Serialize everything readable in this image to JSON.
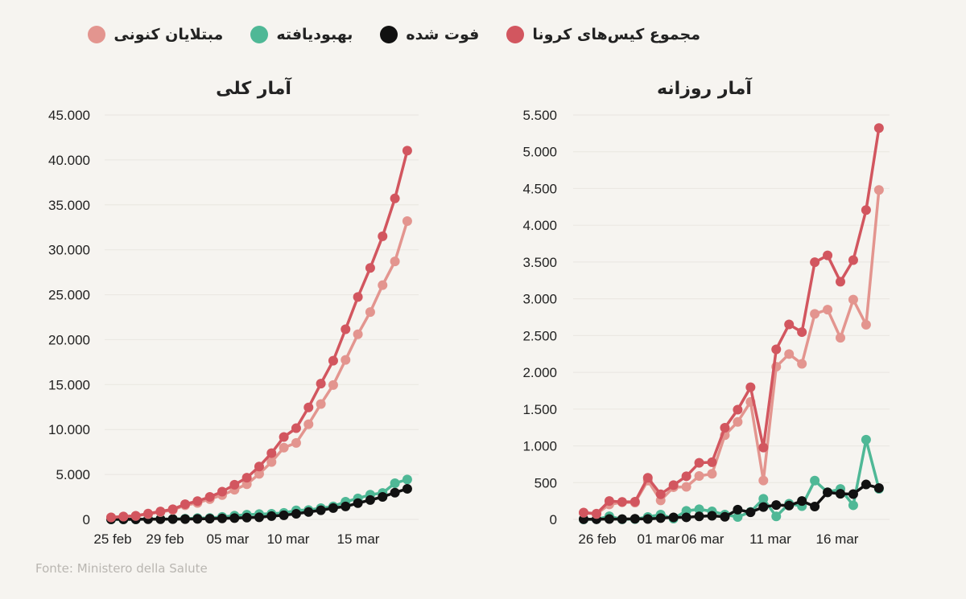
{
  "legend": [
    {
      "label": "مجموع کیس‌های کرونا",
      "color": "#d2565f"
    },
    {
      "label": "فوت شده",
      "color": "#111111"
    },
    {
      "label": "بهبودیافته",
      "color": "#4fb896"
    },
    {
      "label": "مبتلایان کنونی",
      "color": "#e3958f"
    }
  ],
  "source": "Fonte: Ministero della Salute",
  "chart_data": [
    {
      "type": "line",
      "title": "آمار کلی",
      "xlabel": "",
      "ylabel": "",
      "ylim": [
        0,
        45000
      ],
      "yticks": [
        "0",
        "5.000",
        "10.000",
        "15.000",
        "20.000",
        "25.000",
        "30.000",
        "35.000",
        "40.000",
        "45.000"
      ],
      "xtick_labels": [
        "25 feb",
        "29 feb",
        "05 mar",
        "10 mar",
        "15 mar"
      ],
      "x": [
        "24 feb",
        "25 feb",
        "26 feb",
        "27 feb",
        "28 feb",
        "29 feb",
        "01 mar",
        "02 mar",
        "03 mar",
        "04 mar",
        "05 mar",
        "06 mar",
        "07 mar",
        "08 mar",
        "09 mar",
        "10 mar",
        "11 mar",
        "12 mar",
        "13 mar",
        "14 mar",
        "15 mar",
        "16 mar",
        "17 mar",
        "18 mar",
        "19 mar"
      ],
      "series": [
        {
          "name": "مجموع کیس‌های کرونا",
          "color": "#d2565f",
          "values": [
            229,
            322,
            400,
            650,
            888,
            1128,
            1694,
            2036,
            2502,
            3089,
            3858,
            4636,
            5883,
            7375,
            9172,
            10149,
            12462,
            15113,
            17660,
            21157,
            24747,
            27980,
            31506,
            35713,
            41035
          ]
        },
        {
          "name": "مبتلایان کنونی",
          "color": "#e3958f",
          "values": [
            221,
            311,
            385,
            588,
            821,
            1049,
            1577,
            1835,
            2263,
            2706,
            3296,
            3916,
            5061,
            6387,
            7985,
            8514,
            10590,
            12839,
            14955,
            17750,
            20603,
            23073,
            26062,
            28710,
            33190
          ]
        },
        {
          "name": "بهبودیافته",
          "color": "#4fb896",
          "values": [
            1,
            1,
            3,
            45,
            46,
            50,
            83,
            149,
            160,
            276,
            414,
            523,
            589,
            622,
            724,
            1004,
            1045,
            1258,
            1439,
            1966,
            2335,
            2749,
            2941,
            4025,
            4440
          ]
        },
        {
          "name": "فوت شده",
          "color": "#111111",
          "values": [
            7,
            10,
            12,
            17,
            21,
            29,
            34,
            52,
            79,
            107,
            148,
            197,
            233,
            366,
            463,
            631,
            827,
            1016,
            1266,
            1441,
            1809,
            2158,
            2503,
            2978,
            3405
          ]
        }
      ],
      "grid": true
    },
    {
      "type": "line",
      "title": "آمار روزانه",
      "xlabel": "",
      "ylabel": "",
      "ylim": [
        0,
        5500
      ],
      "yticks": [
        "0",
        "500",
        "1.000",
        "1.500",
        "2.000",
        "2.500",
        "3.000",
        "3.500",
        "4.000",
        "4.500",
        "5.000",
        "5.500"
      ],
      "xtick_labels": [
        "26 feb",
        "01 mar",
        "06 mar",
        "11 mar",
        "16 mar"
      ],
      "x": [
        "25 feb",
        "26 feb",
        "27 feb",
        "28 feb",
        "29 feb",
        "01 mar",
        "02 mar",
        "03 mar",
        "04 mar",
        "05 mar",
        "06 mar",
        "07 mar",
        "08 mar",
        "09 mar",
        "10 mar",
        "11 mar",
        "12 mar",
        "13 mar",
        "14 mar",
        "15 mar",
        "16 mar",
        "17 mar",
        "18 mar",
        "19 mar"
      ],
      "series": [
        {
          "name": "مجموع کیس‌های کرونا",
          "color": "#d2565f",
          "values": [
            93,
            78,
            250,
            238,
            240,
            566,
            342,
            466,
            587,
            769,
            778,
            1247,
            1492,
            1797,
            977,
            2313,
            2651,
            2547,
            3497,
            3590,
            3233,
            3526,
            4207,
            5322
          ]
        },
        {
          "name": "مبتلایان کنونی",
          "color": "#e3958f",
          "values": [
            90,
            74,
            203,
            233,
            228,
            528,
            258,
            438,
            443,
            590,
            620,
            1145,
            1326,
            1598,
            529,
            2076,
            2249,
            2116,
            2795,
            2853,
            2470,
            2989,
            2648,
            4480
          ]
        },
        {
          "name": "بهبودیافته",
          "color": "#4fb896",
          "values": [
            0,
            2,
            42,
            1,
            4,
            33,
            66,
            11,
            116,
            138,
            109,
            66,
            33,
            102,
            280,
            41,
            213,
            181,
            527,
            369,
            414,
            192,
            1084,
            415
          ]
        },
        {
          "name": "فوت شده",
          "color": "#111111",
          "values": [
            3,
            2,
            5,
            4,
            8,
            5,
            18,
            27,
            28,
            41,
            49,
            36,
            133,
            97,
            168,
            196,
            189,
            250,
            175,
            368,
            349,
            345,
            475,
            427
          ]
        }
      ],
      "grid": true
    }
  ]
}
